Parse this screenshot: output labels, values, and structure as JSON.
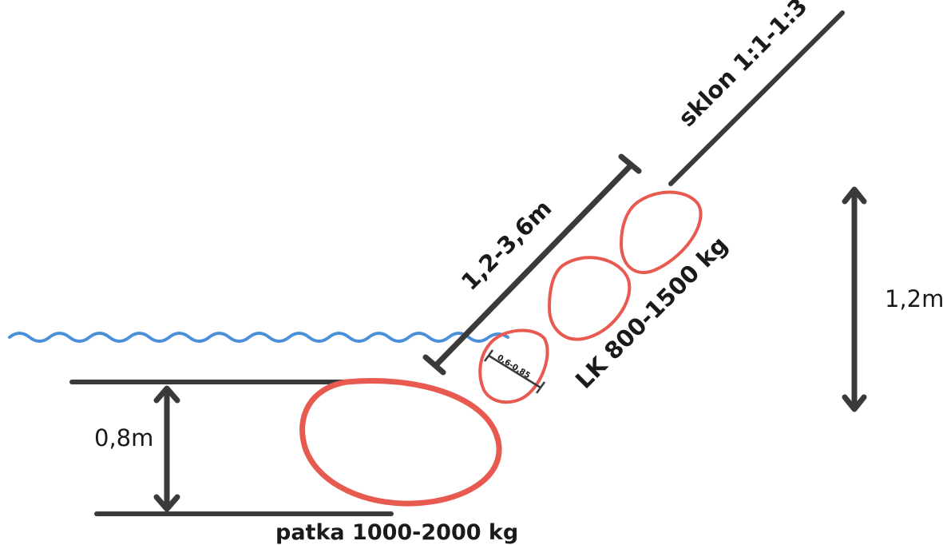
{
  "labels": {
    "slope": "sklon 1:1-1:3",
    "slope_length": "1,2-3,6m",
    "stone_size": "LK 800-1500 kg",
    "stone_thickness": "0,6-0,85",
    "height_right": "1,2m",
    "height_left": "0,8m",
    "footing": "patka 1000-2000 kg"
  },
  "colors": {
    "water": "#4a90d9",
    "stone_outline": "#e85a4f",
    "line": "#3a3a3a",
    "text": "#1a1a1a",
    "background": "#ffffff"
  }
}
